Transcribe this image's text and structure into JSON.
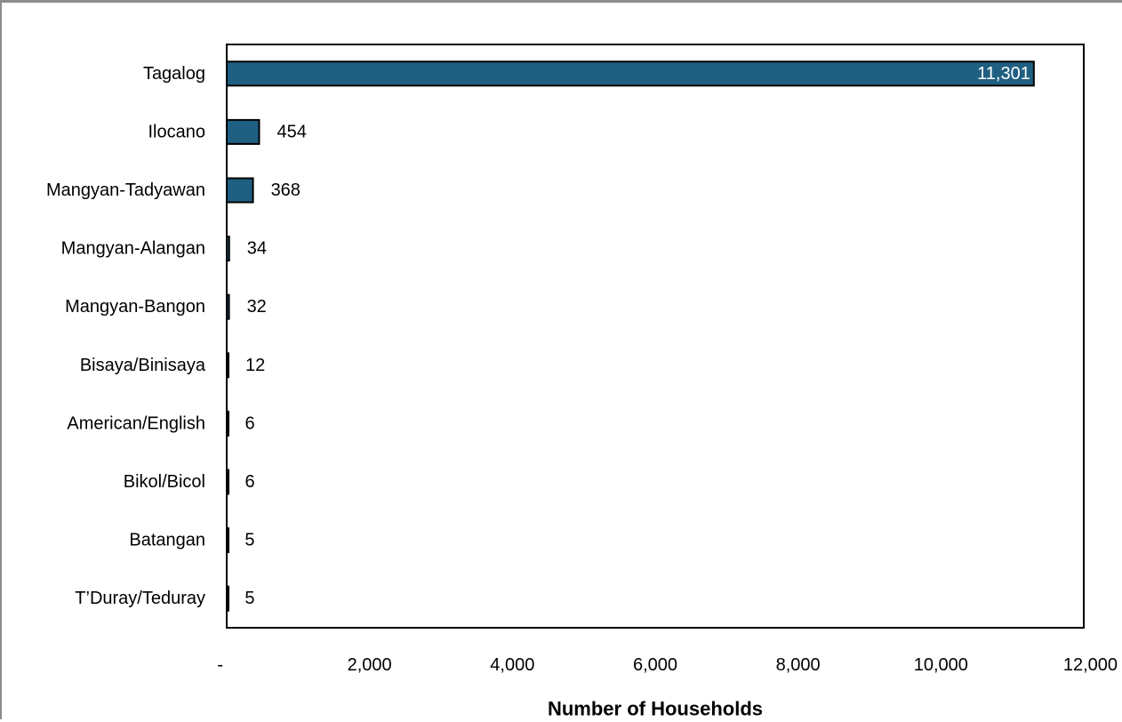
{
  "chart_data": {
    "type": "bar",
    "orientation": "horizontal",
    "categories": [
      "Tagalog",
      "Ilocano",
      "Mangyan-Tadyawan",
      "Mangyan-Alangan",
      "Mangyan-Bangon",
      "Bisaya/Binisaya",
      "American/English",
      "Bikol/Bicol",
      "Batangan",
      "T’Duray/Teduray"
    ],
    "values": [
      11301,
      454,
      368,
      34,
      32,
      12,
      6,
      6,
      5,
      5
    ],
    "data_labels": [
      "11,301",
      "454",
      "368",
      "34",
      "32",
      "12",
      "6",
      "6",
      "5",
      "5"
    ],
    "xlabel": "Number of Households",
    "ylabel": "",
    "xlim": [
      0,
      12000
    ],
    "x_ticks": [
      0,
      2000,
      4000,
      6000,
      8000,
      10000,
      12000
    ],
    "x_tick_labels": [
      "-",
      "2,000",
      "4,000",
      "6,000",
      "8,000",
      "10,000",
      "12,000"
    ],
    "grid": false,
    "legend": "none",
    "colors": {
      "bar_fill": "#1f5f82",
      "bar_stroke": "#000000",
      "inside_label": "#ffffff",
      "outside_label": "#000000"
    }
  }
}
